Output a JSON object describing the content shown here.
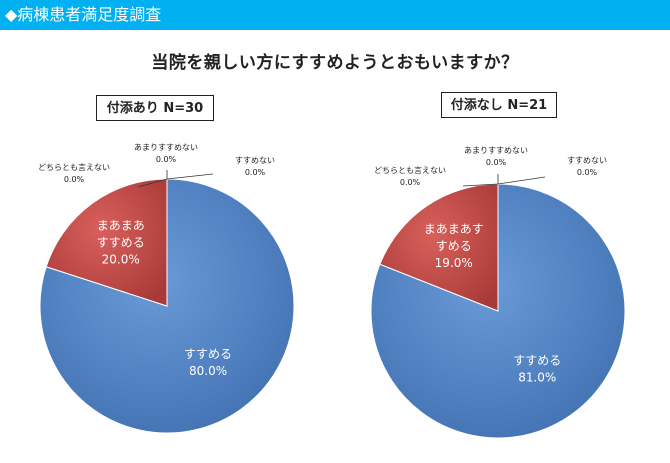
{
  "header": {
    "title": "◆病棟患者満足度調査"
  },
  "question": "当院を親しい方にすすめようとおもいますか？",
  "chart_data": [
    {
      "type": "pie",
      "group_label": "付添あり N=30",
      "categories": [
        "すすめる",
        "まあまあすすめる",
        "どちらとも言えない",
        "あまりすすめない",
        "すすめない"
      ],
      "values": [
        80.0,
        20.0,
        0.0,
        0.0,
        0.0
      ],
      "value_labels": [
        "80.0%",
        "20.0%",
        "0.0%",
        "0.0%",
        "0.0%"
      ],
      "category_labels": [
        [
          "すすめる"
        ],
        [
          "まあまあ",
          "すすめる"
        ],
        [
          "どちらとも言えない"
        ],
        [
          "あまりすすめない"
        ],
        [
          "すすめない"
        ]
      ],
      "colors": [
        "#4f81bd",
        "#c0504d",
        "#9bbb59",
        "#8064a2",
        "#4bacc6"
      ]
    },
    {
      "type": "pie",
      "group_label": "付添なし N=21",
      "categories": [
        "すすめる",
        "まあまあすすめる",
        "どちらとも言えない",
        "あまりすすめない",
        "すすめない"
      ],
      "values": [
        81.0,
        19.0,
        0.0,
        0.0,
        0.0
      ],
      "value_labels": [
        "81.0%",
        "19.0%",
        "0.0%",
        "0.0%",
        "0.0%"
      ],
      "category_labels": [
        [
          "すすめる"
        ],
        [
          "まあまあす",
          "すめる"
        ],
        [
          "どちらとも言えない"
        ],
        [
          "あまりすすめない"
        ],
        [
          "すすめない"
        ]
      ],
      "colors": [
        "#4f81bd",
        "#c0504d",
        "#9bbb59",
        "#8064a2",
        "#4bacc6"
      ]
    }
  ]
}
